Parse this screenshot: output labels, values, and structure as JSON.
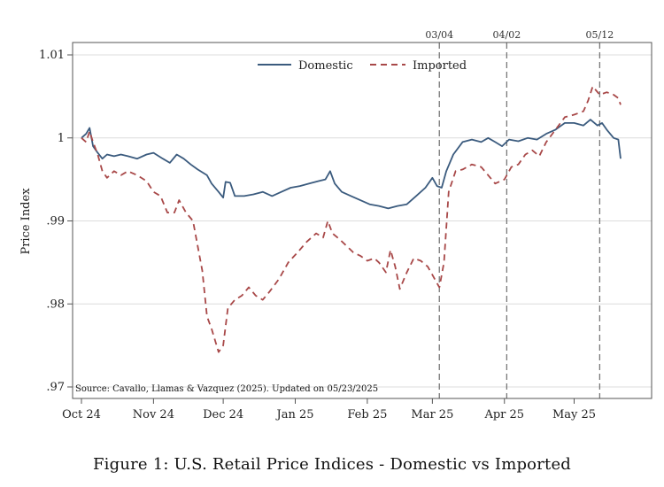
{
  "caption": "Figure 1: U.S. Retail Price Indices - Domestic vs Imported",
  "chart_data": {
    "type": "line",
    "title": "",
    "xlabel": "",
    "ylabel": "Price Index",
    "source_note": "Source: Cavallo, Llamas & Vazquez (2025). Updated on 05/23/2025",
    "x_ticks": [
      {
        "label": "Oct 24",
        "day": 0
      },
      {
        "label": "Nov 24",
        "day": 31
      },
      {
        "label": "Dec 24",
        "day": 61
      },
      {
        "label": "Jan 25",
        "day": 92
      },
      {
        "label": "Feb 25",
        "day": 123
      },
      {
        "label": "Mar 25",
        "day": 151
      },
      {
        "label": "Apr 25",
        "day": 182
      },
      {
        "label": "May 25",
        "day": 212
      }
    ],
    "xlim": [
      0,
      240
    ],
    "ylim": [
      0.97,
      1.01
    ],
    "y_ticks": [
      {
        "label": "1.01",
        "value": 1.01
      },
      {
        "label": "1",
        "value": 1.0
      },
      {
        "label": ".99",
        "value": 0.99
      },
      {
        "label": ".98",
        "value": 0.98
      },
      {
        "label": ".97",
        "value": 0.97
      }
    ],
    "grid": true,
    "legend_position": "top",
    "events": [
      {
        "label": "03/04",
        "day": 154
      },
      {
        "label": "04/02",
        "day": 183
      },
      {
        "label": "05/12",
        "day": 223
      }
    ],
    "series": [
      {
        "name": "Domestic",
        "color": "#3b5b7e",
        "dash": "solid",
        "points": [
          [
            0,
            1.0
          ],
          [
            2,
            1.0005
          ],
          [
            3.5,
            1.0012
          ],
          [
            5,
            0.999
          ],
          [
            7,
            0.9982
          ],
          [
            9,
            0.9975
          ],
          [
            11,
            0.998
          ],
          [
            14,
            0.9978
          ],
          [
            17,
            0.998
          ],
          [
            20,
            0.9978
          ],
          [
            24,
            0.9975
          ],
          [
            28,
            0.998
          ],
          [
            31,
            0.9982
          ],
          [
            35,
            0.9975
          ],
          [
            38,
            0.997
          ],
          [
            41,
            0.998
          ],
          [
            44,
            0.9975
          ],
          [
            47,
            0.9968
          ],
          [
            50,
            0.9962
          ],
          [
            54,
            0.9955
          ],
          [
            56,
            0.9945
          ],
          [
            59,
            0.9935
          ],
          [
            61,
            0.9928
          ],
          [
            62,
            0.9947
          ],
          [
            64,
            0.9946
          ],
          [
            66,
            0.993
          ],
          [
            70,
            0.993
          ],
          [
            74,
            0.9932
          ],
          [
            78,
            0.9935
          ],
          [
            82,
            0.993
          ],
          [
            86,
            0.9935
          ],
          [
            90,
            0.994
          ],
          [
            94,
            0.9942
          ],
          [
            98,
            0.9945
          ],
          [
            102,
            0.9948
          ],
          [
            105,
            0.995
          ],
          [
            107,
            0.996
          ],
          [
            109,
            0.9945
          ],
          [
            112,
            0.9935
          ],
          [
            116,
            0.993
          ],
          [
            120,
            0.9925
          ],
          [
            124,
            0.992
          ],
          [
            128,
            0.9918
          ],
          [
            132,
            0.9915
          ],
          [
            136,
            0.9918
          ],
          [
            140,
            0.992
          ],
          [
            144,
            0.993
          ],
          [
            148,
            0.994
          ],
          [
            151,
            0.9952
          ],
          [
            153,
            0.9942
          ],
          [
            155,
            0.994
          ],
          [
            157,
            0.996
          ],
          [
            160,
            0.998
          ],
          [
            164,
            0.9995
          ],
          [
            168,
            0.9998
          ],
          [
            172,
            0.9995
          ],
          [
            175,
            1.0
          ],
          [
            178,
            0.9995
          ],
          [
            181,
            0.999
          ],
          [
            184,
            0.9998
          ],
          [
            188,
            0.9996
          ],
          [
            192,
            1.0
          ],
          [
            196,
            0.9998
          ],
          [
            200,
            1.0005
          ],
          [
            204,
            1.001
          ],
          [
            208,
            1.0018
          ],
          [
            212,
            1.0018
          ],
          [
            216,
            1.0015
          ],
          [
            219,
            1.0022
          ],
          [
            222,
            1.0015
          ],
          [
            224,
            1.0018
          ],
          [
            226,
            1.001
          ],
          [
            229,
            1.0
          ],
          [
            231,
            0.9998
          ],
          [
            232,
            0.9975
          ]
        ]
      },
      {
        "name": "Imported",
        "color": "#a84848",
        "dash": "dashed",
        "points": [
          [
            0,
            1.0
          ],
          [
            2,
            0.9995
          ],
          [
            3.5,
            1.0008
          ],
          [
            5,
            0.9995
          ],
          [
            7,
            0.998
          ],
          [
            9,
            0.996
          ],
          [
            11,
            0.9952
          ],
          [
            14,
            0.996
          ],
          [
            17,
            0.9955
          ],
          [
            20,
            0.996
          ],
          [
            24,
            0.9955
          ],
          [
            28,
            0.9948
          ],
          [
            31,
            0.9935
          ],
          [
            34,
            0.993
          ],
          [
            37,
            0.991
          ],
          [
            40,
            0.991
          ],
          [
            42,
            0.9925
          ],
          [
            45,
            0.991
          ],
          [
            48,
            0.99
          ],
          [
            52,
            0.984
          ],
          [
            54,
            0.9785
          ],
          [
            56,
            0.977
          ],
          [
            59,
            0.9742
          ],
          [
            61,
            0.975
          ],
          [
            63,
            0.9795
          ],
          [
            66,
            0.9805
          ],
          [
            69,
            0.981
          ],
          [
            72,
            0.982
          ],
          [
            75,
            0.981
          ],
          [
            78,
            0.9805
          ],
          [
            81,
            0.9815
          ],
          [
            85,
            0.983
          ],
          [
            89,
            0.985
          ],
          [
            93,
            0.9862
          ],
          [
            97,
            0.9875
          ],
          [
            101,
            0.9885
          ],
          [
            104,
            0.988
          ],
          [
            106,
            0.99
          ],
          [
            108,
            0.9885
          ],
          [
            111,
            0.9878
          ],
          [
            114,
            0.987
          ],
          [
            117,
            0.9862
          ],
          [
            120,
            0.9858
          ],
          [
            123,
            0.9852
          ],
          [
            126,
            0.9855
          ],
          [
            128,
            0.985
          ],
          [
            131,
            0.9838
          ],
          [
            133,
            0.9865
          ],
          [
            135,
            0.9845
          ],
          [
            137,
            0.9818
          ],
          [
            140,
            0.9838
          ],
          [
            143,
            0.9855
          ],
          [
            146,
            0.9852
          ],
          [
            149,
            0.9845
          ],
          [
            151,
            0.9835
          ],
          [
            153,
            0.9825
          ],
          [
            154,
            0.982
          ],
          [
            156,
            0.985
          ],
          [
            158,
            0.9935
          ],
          [
            161,
            0.996
          ],
          [
            164,
            0.9962
          ],
          [
            168,
            0.9968
          ],
          [
            172,
            0.9965
          ],
          [
            175,
            0.9955
          ],
          [
            178,
            0.9945
          ],
          [
            182,
            0.995
          ],
          [
            185,
            0.9965
          ],
          [
            188,
            0.9968
          ],
          [
            191,
            0.998
          ],
          [
            194,
            0.9985
          ],
          [
            197,
            0.9978
          ],
          [
            200,
            0.9995
          ],
          [
            204,
            1.001
          ],
          [
            208,
            1.0025
          ],
          [
            212,
            1.0028
          ],
          [
            216,
            1.0032
          ],
          [
            218,
            1.0045
          ],
          [
            220,
            1.0062
          ],
          [
            223,
            1.0052
          ],
          [
            226,
            1.0055
          ],
          [
            229,
            1.0052
          ],
          [
            231,
            1.0048
          ],
          [
            232,
            1.004
          ]
        ]
      }
    ]
  }
}
